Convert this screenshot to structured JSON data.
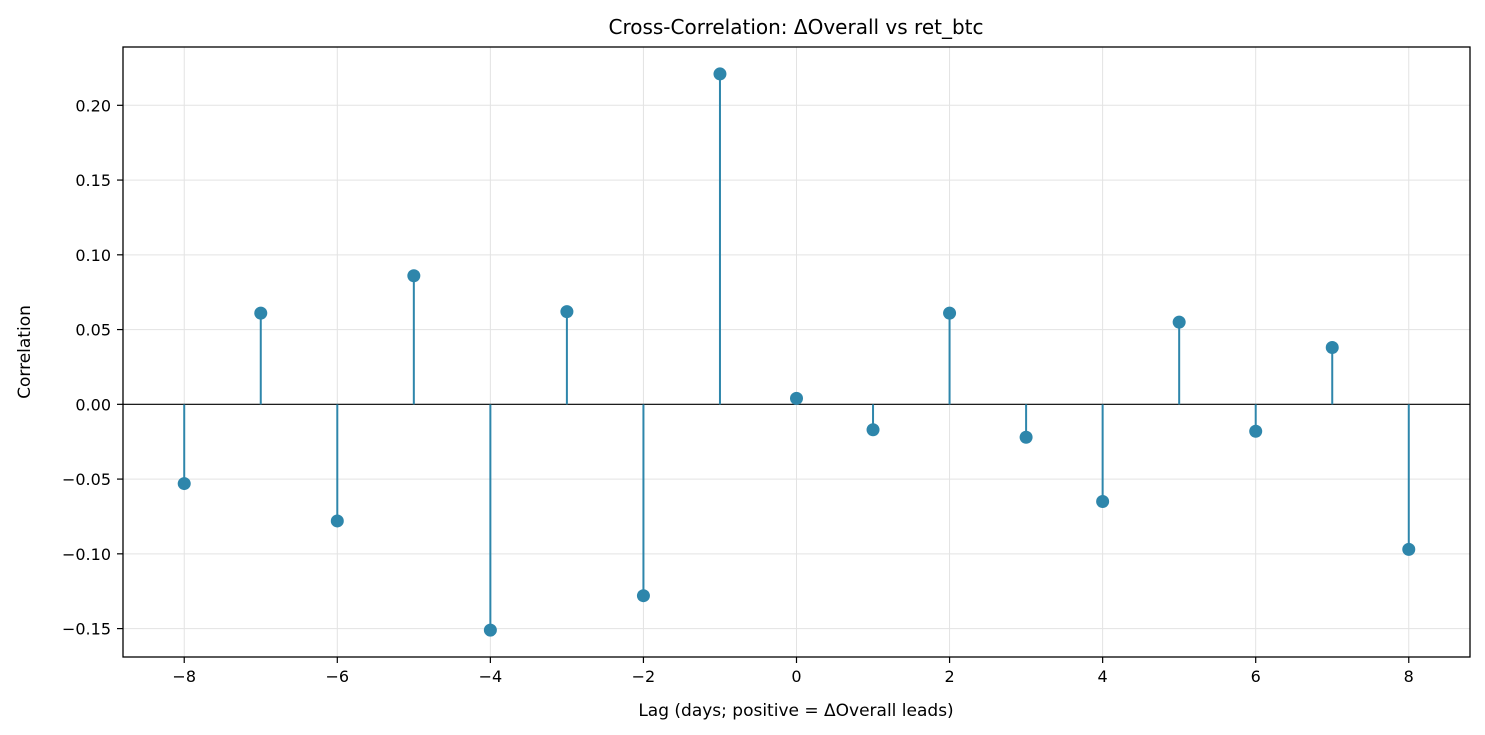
{
  "chart_data": {
    "type": "stem",
    "title": "Cross-Correlation: ΔOverall vs ret_btc",
    "xlabel": "Lag (days; positive = ΔOverall leads)",
    "ylabel": "Correlation",
    "x": [
      -8,
      -7,
      -6,
      -5,
      -4,
      -3,
      -2,
      -1,
      0,
      1,
      2,
      3,
      4,
      5,
      6,
      7,
      8
    ],
    "values": [
      -0.053,
      0.061,
      -0.078,
      0.086,
      -0.151,
      0.062,
      -0.128,
      0.221,
      0.004,
      -0.017,
      0.061,
      -0.022,
      -0.065,
      0.055,
      -0.018,
      0.038,
      -0.097
    ],
    "xlim": [
      -8.8,
      8.8
    ],
    "ylim": [
      -0.169,
      0.239
    ],
    "xticks": [
      -8,
      -6,
      -4,
      -2,
      0,
      2,
      4,
      6,
      8
    ],
    "xtick_labels": [
      "−8",
      "−6",
      "−4",
      "−2",
      "0",
      "2",
      "4",
      "6",
      "8"
    ],
    "yticks": [
      -0.15,
      -0.1,
      -0.05,
      0.0,
      0.05,
      0.1,
      0.15,
      0.2
    ],
    "ytick_labels": [
      "−0.15",
      "−0.10",
      "−0.05",
      "0.00",
      "0.05",
      "0.10",
      "0.15",
      "0.20"
    ],
    "grid": true,
    "zero_line": true,
    "colors": {
      "stem": "#2e86ab",
      "marker": "#2e86ab",
      "grid": "#e3e3e3",
      "axes": "#000000",
      "zero_line": "#000000"
    }
  }
}
